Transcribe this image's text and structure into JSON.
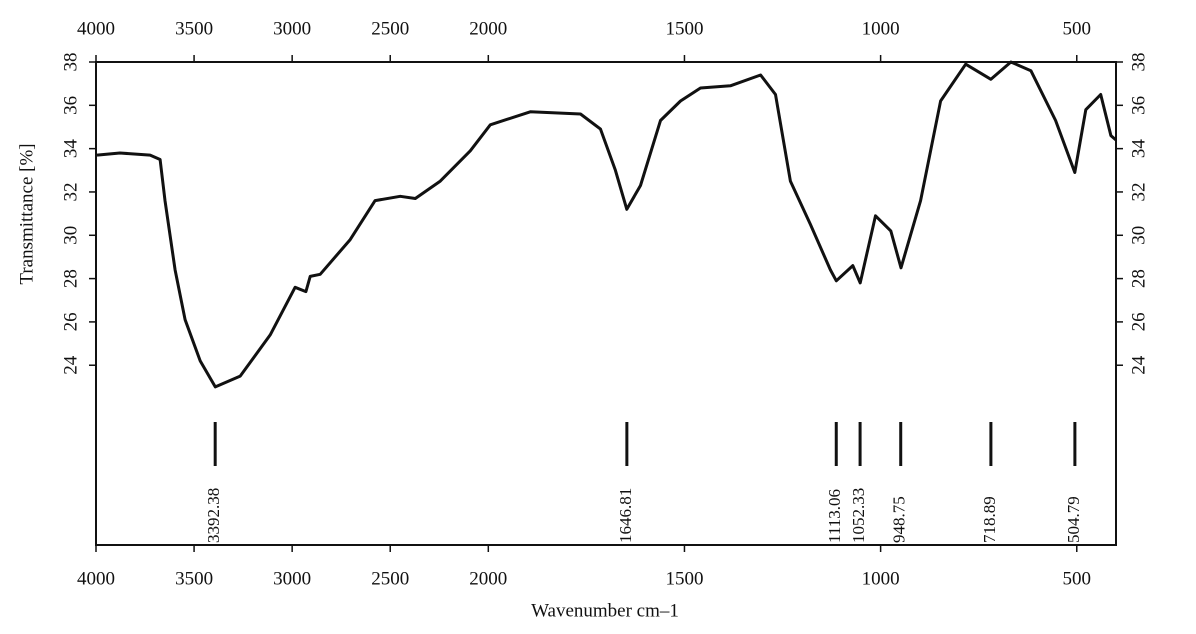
{
  "chart_data": {
    "type": "line",
    "xlabel": "Wavenumber cm–1",
    "ylabel": "Transmittance [%]",
    "x": [
      3995,
      3878,
      3724,
      3673,
      3648,
      3597,
      3546,
      3469,
      3392,
      3265,
      3112,
      2985,
      2930,
      2908,
      2857,
      2704,
      2577,
      2449,
      2372,
      2245,
      2092,
      1995,
      1893,
      1765,
      1714,
      1676,
      1647,
      1612,
      1561,
      1510,
      1459,
      1383,
      1306,
      1268,
      1230,
      1179,
      1128,
      1113,
      1071,
      1052,
      1013,
      974,
      948,
      898,
      847,
      783,
      719,
      668,
      617,
      554,
      505,
      477,
      439,
      413,
      400
    ],
    "series": [
      {
        "color": "#111111",
        "values": [
          33.7,
          33.8,
          33.7,
          33.5,
          31.6,
          28.4,
          26.1,
          24.2,
          23.0,
          23.5,
          25.4,
          27.6,
          27.4,
          28.1,
          28.2,
          29.8,
          31.6,
          31.8,
          31.7,
          32.5,
          33.9,
          35.1,
          35.7,
          35.6,
          34.9,
          33.0,
          31.2,
          32.3,
          35.3,
          36.2,
          36.8,
          36.9,
          37.4,
          36.5,
          32.5,
          30.5,
          28.4,
          27.9,
          28.6,
          27.8,
          30.9,
          30.2,
          28.5,
          31.6,
          36.2,
          37.9,
          37.2,
          38.0,
          37.6,
          35.3,
          32.9,
          35.8,
          36.5,
          34.6,
          34.4
        ]
      }
    ],
    "xlim": [
      4000,
      400
    ],
    "x_scale_break": 2000,
    "x_scale_ratio": 2,
    "xticks": [
      4000,
      3500,
      3000,
      2500,
      2000,
      1500,
      1000,
      500
    ],
    "ylim": [
      15.7,
      38
    ],
    "yticks": [
      24,
      26,
      28,
      30,
      32,
      34,
      36,
      38
    ],
    "peaks": [
      3392.38,
      1646.81,
      1113.06,
      1052.33,
      948.75,
      718.89,
      504.79
    ]
  }
}
